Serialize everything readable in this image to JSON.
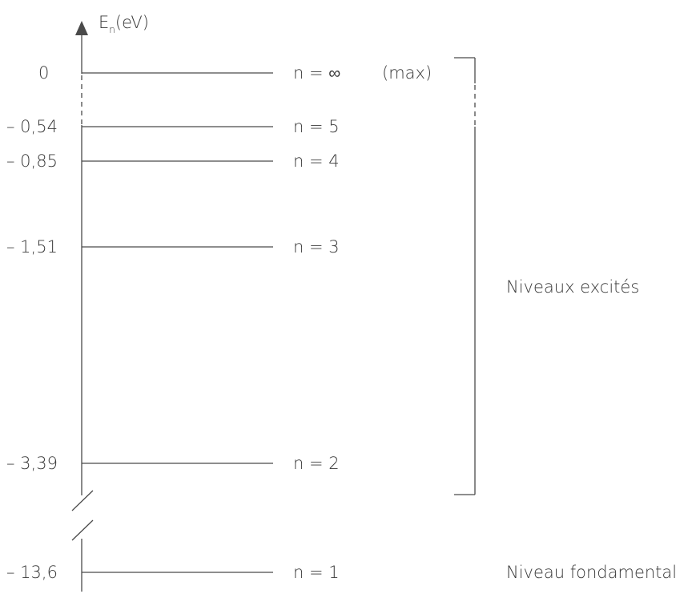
{
  "axis": {
    "symbol": "E",
    "subscript": "n",
    "unit": "(eV)"
  },
  "levels": [
    {
      "n_label": "n = ∞",
      "energy_label": "0",
      "energy_eV": 0
    },
    {
      "n_label": "n = 5",
      "energy_label": "– 0,54",
      "energy_eV": -0.54
    },
    {
      "n_label": "n = 4",
      "energy_label": "– 0,85",
      "energy_eV": -0.85
    },
    {
      "n_label": "n = 3",
      "energy_label": "– 1,51",
      "energy_eV": -1.51
    },
    {
      "n_label": "n = 2",
      "energy_label": "– 3,39",
      "energy_eV": -3.39
    },
    {
      "n_label": "n = 1",
      "energy_label": "– 13,6",
      "energy_eV": -13.6
    }
  ],
  "max_note": "(max)",
  "excited_label": "Niveaux excités",
  "ground_label": "Niveau fondamental"
}
